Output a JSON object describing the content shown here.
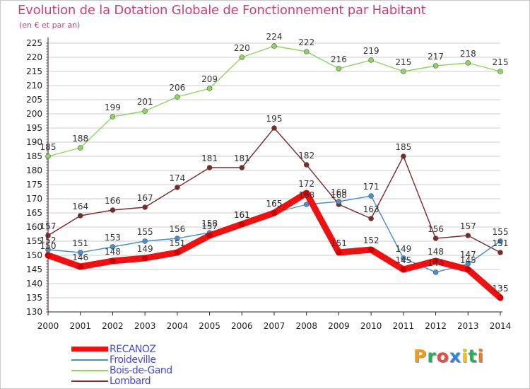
{
  "title": "Evolution de la Dotation Globale de Fonctionnement par Habitant",
  "subtitle": "(en € et par an)",
  "logo": {
    "text": "Proxiti",
    "letters": [
      "P",
      "r",
      "o",
      "x",
      "i",
      "t",
      "i"
    ],
    "colors": [
      "#f39c12",
      "#27ae60",
      "#e74c3c",
      "#2e86de",
      "#f1c40f",
      "#27ae60",
      "#e67e22"
    ]
  },
  "colors": {
    "title": "#c8427a",
    "legend_text": "#4a4acf",
    "grid": "#cccccc",
    "axis": "#222222"
  },
  "chart_data": {
    "type": "line",
    "title": "Evolution de la Dotation Globale de Fonctionnement par Habitant",
    "subtitle": "(en € et par an)",
    "xlabel": "",
    "ylabel": "",
    "x": [
      2000,
      2001,
      2002,
      2003,
      2004,
      2005,
      2006,
      2007,
      2008,
      2009,
      2010,
      2011,
      2012,
      2013,
      2014
    ],
    "ylim": [
      130,
      225
    ],
    "yticks": [
      130,
      135,
      140,
      145,
      150,
      155,
      160,
      165,
      170,
      175,
      180,
      185,
      190,
      195,
      200,
      205,
      210,
      215,
      220,
      225
    ],
    "grid": "horizontal",
    "legend_position": "bottom-left",
    "series": [
      {
        "name": "RECANOZ",
        "color": "#ee1111",
        "values": [
          150,
          146,
          148,
          149,
          151,
          157,
          161,
          165,
          172,
          151,
          152,
          145,
          148,
          145,
          135
        ]
      },
      {
        "name": "Froideville",
        "color": "#4a90c8",
        "values": [
          152,
          151,
          153,
          155,
          156,
          158,
          161,
          165,
          168,
          169,
          171,
          149,
          144,
          147,
          155
        ]
      },
      {
        "name": "Bois-de-Gand",
        "color": "#8fd461",
        "values": [
          185,
          188,
          199,
          201,
          206,
          209,
          220,
          224,
          222,
          216,
          219,
          215,
          217,
          218,
          215
        ]
      },
      {
        "name": "Lombard",
        "color": "#7a2a2a",
        "values": [
          157,
          164,
          166,
          167,
          174,
          181,
          181,
          195,
          182,
          168,
          163,
          185,
          156,
          157,
          151
        ]
      }
    ]
  }
}
